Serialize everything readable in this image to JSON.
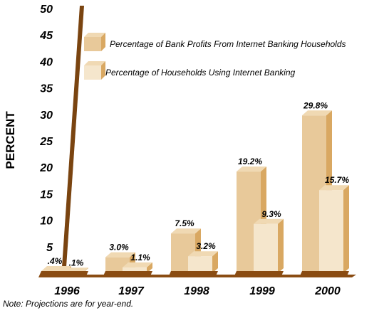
{
  "chart_data": {
    "type": "bar",
    "title": "",
    "xlabel": "",
    "ylabel": "PERCENT",
    "ylim": [
      0,
      50
    ],
    "yticks": [
      0,
      5,
      10,
      15,
      20,
      25,
      30,
      35,
      40,
      45,
      50
    ],
    "categories": [
      "1996",
      "1997",
      "1998",
      "1999",
      "2000"
    ],
    "series": [
      {
        "name": "Percentage of Bank Profits From Internet Banking Households",
        "values": [
          0.4,
          3.0,
          7.5,
          19.2,
          29.8
        ],
        "labels": [
          ".4%",
          "3.0%",
          "7.5%",
          "19.2%",
          "29.8%"
        ],
        "color": "#e8c99a"
      },
      {
        "name": "Percentage of Households Using Internet Banking",
        "values": [
          0.1,
          1.1,
          3.2,
          9.3,
          15.7
        ],
        "labels": [
          ".1%",
          "1.1%",
          "3.2%",
          "9.3%",
          "15.7%"
        ],
        "color": "#f5e6cc"
      }
    ],
    "legend_position": "top-left",
    "grid": false
  },
  "colors": {
    "axis": "#7a4410",
    "shade": "#d9a862",
    "base": "#8a4c12"
  },
  "note": "Note: Projections are for year-end."
}
